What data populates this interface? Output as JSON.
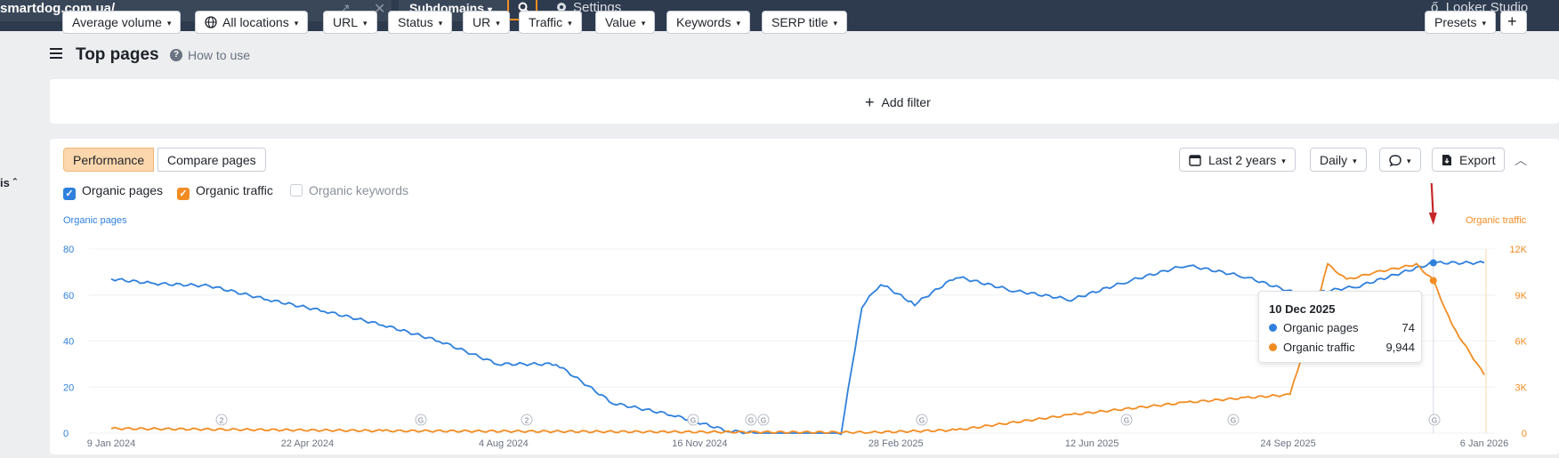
{
  "topbar": {
    "url": "smartdog.com.ua/",
    "subdomains_label": "Subdomains",
    "settings_label": "Settings",
    "looker_label": "Looker Studio"
  },
  "header": {
    "title": "Top pages",
    "help_label": "How to use"
  },
  "filters": {
    "items": [
      "Average volume",
      "All locations",
      "URL",
      "Status",
      "UR",
      "Traffic",
      "Value",
      "Keywords",
      "SERP title"
    ],
    "add_filter_label": "Add filter",
    "presets_label": "Presets"
  },
  "chart_panel": {
    "tabs": [
      "Performance",
      "Compare pages"
    ],
    "period_label": "Last 2 years",
    "granularity_label": "Daily",
    "export_label": "Export",
    "side_label": "is",
    "checkboxes": [
      {
        "label": "Organic pages",
        "checked": true,
        "color": "#2f80dc"
      },
      {
        "label": "Organic traffic",
        "checked": true,
        "color": "#f28c22"
      },
      {
        "label": "Organic keywords",
        "checked": false,
        "color": "#c9ced6"
      }
    ]
  },
  "chart_data": {
    "type": "line",
    "left_axis_title": "Organic pages",
    "right_axis_title": "Organic traffic",
    "left_ticks": [
      "80",
      "60",
      "40",
      "20",
      "0"
    ],
    "right_ticks": [
      "12K",
      "9K",
      "6K",
      "3K",
      "0"
    ],
    "x_ticks": [
      "9 Jan 2024",
      "22 Apr 2024",
      "4 Aug 2024",
      "16 Nov 2024",
      "28 Feb 2025",
      "12 Jun 2025",
      "24 Sep 2025",
      "6 Jan 2026"
    ],
    "ylim_left": [
      0,
      80
    ],
    "ylim_right": [
      0,
      12000
    ],
    "annotations": [
      "2",
      "G",
      "2",
      "G",
      "G",
      "G",
      "G",
      "G",
      "G",
      "G"
    ],
    "series": [
      {
        "name": "Organic pages",
        "color": "#2f80dc",
        "axis": "left",
        "points": [
          [
            "9 Jan 2024",
            67
          ],
          [
            "1 Feb 2024",
            65
          ],
          [
            "1 Mar 2024",
            64
          ],
          [
            "1 Apr 2024",
            58
          ],
          [
            "1 May 2024",
            53
          ],
          [
            "1 Jun 2024",
            47
          ],
          [
            "1 Jul 2024",
            40
          ],
          [
            "1 Aug 2024",
            30
          ],
          [
            "1 Sep 2024",
            30
          ],
          [
            "1 Oct 2024",
            13
          ],
          [
            "1 Nov 2024",
            8
          ],
          [
            "1 Dec 2024",
            1
          ],
          [
            "15 Dec 2024",
            0
          ],
          [
            "15 Jan 2025",
            0
          ],
          [
            "30 Jan 2025",
            0
          ],
          [
            "10 Feb 2025",
            55
          ],
          [
            "20 Feb 2025",
            65
          ],
          [
            "10 Mar 2025",
            56
          ],
          [
            "1 Apr 2025",
            68
          ],
          [
            "1 May 2025",
            62
          ],
          [
            "1 Jun 2025",
            58
          ],
          [
            "1 Jul 2025",
            66
          ],
          [
            "1 Aug 2025",
            73
          ],
          [
            "1 Sep 2025",
            68
          ],
          [
            "1 Oct 2025",
            60
          ],
          [
            "1 Nov 2025",
            64
          ],
          [
            "10 Dec 2025",
            74
          ],
          [
            "6 Jan 2026",
            74
          ]
        ]
      },
      {
        "name": "Organic traffic",
        "color": "#f28c22",
        "axis": "right",
        "points": [
          [
            "9 Jan 2024",
            300
          ],
          [
            "1 Jun 2024",
            150
          ],
          [
            "1 Nov 2024",
            80
          ],
          [
            "15 Feb 2025",
            50
          ],
          [
            "1 Apr 2025",
            200
          ],
          [
            "1 Jun 2025",
            1200
          ],
          [
            "1 Aug 2025",
            2000
          ],
          [
            "1 Sep 2025",
            2300
          ],
          [
            "25 Sep 2025",
            2500
          ],
          [
            "5 Oct 2025",
            6500
          ],
          [
            "15 Oct 2025",
            11000
          ],
          [
            "25 Oct 2025",
            10000
          ],
          [
            "10 Nov 2025",
            10500
          ],
          [
            "1 Dec 2025",
            11000
          ],
          [
            "10 Dec 2025",
            9944
          ],
          [
            "20 Dec 2025",
            7000
          ],
          [
            "6 Jan 2026",
            3800
          ]
        ]
      }
    ]
  },
  "tooltip": {
    "date": "10 Dec 2025",
    "rows": [
      {
        "label": "Organic pages",
        "value": "74",
        "color": "#2f80dc"
      },
      {
        "label": "Organic traffic",
        "value": "9,944",
        "color": "#f28c22"
      }
    ]
  }
}
